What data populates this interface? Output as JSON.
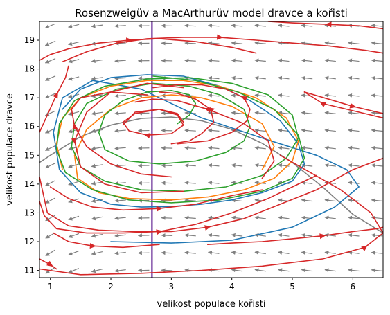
{
  "chart_data": {
    "type": "line",
    "title": "Rosenzweigův a MacArthurův model dravce a kořisti",
    "xlabel": "velikost populace kořisti",
    "ylabel": "velikost populace dravce",
    "xlim": [
      0.82,
      6.5
    ],
    "ylim": [
      10.75,
      19.65
    ],
    "x_ticks": [
      1,
      2,
      3,
      4,
      5,
      6
    ],
    "y_ticks": [
      11,
      12,
      13,
      14,
      15,
      16,
      17,
      18,
      19
    ],
    "grid": false,
    "legend": "none",
    "vector_field": {
      "color": "#808080",
      "x_from": 1.0,
      "x_to": 6.4,
      "x_count": 15,
      "y_from": 11.0,
      "y_to": 19.5,
      "y_count": 15
    },
    "isoclines": [
      {
        "role": "prey-nullcline",
        "color": "#808080",
        "x": [
          0.82,
          1.0,
          1.5,
          2.0,
          2.5,
          3.0,
          3.5,
          4.0,
          4.5,
          5.0,
          5.5,
          6.0,
          6.5
        ],
        "y": [
          14.75,
          15.0,
          15.65,
          16.05,
          16.28,
          16.33,
          16.2,
          15.9,
          15.42,
          14.75,
          13.9,
          12.95,
          12.3
        ]
      },
      {
        "role": "predator-nullcline",
        "color": "#4b0082",
        "x": [
          2.68,
          2.68
        ],
        "y": [
          10.75,
          19.65
        ]
      }
    ],
    "series": [
      {
        "color": "#1f77b4",
        "x": [
          2.0,
          3.0,
          4.0,
          5.0,
          5.7,
          6.1,
          5.9,
          5.4,
          4.5,
          3.5,
          2.5,
          1.7,
          1.2,
          1.05,
          1.15,
          1.5,
          2.0,
          2.5,
          3.0,
          3.5,
          4.0,
          4.5,
          5.0,
          5.2,
          5.1,
          4.8,
          4.3,
          3.8,
          3.2,
          2.6,
          2.0,
          1.5,
          1.2
        ],
        "y": [
          12.0,
          11.95,
          12.05,
          12.5,
          13.2,
          13.9,
          14.5,
          15.0,
          15.6,
          16.3,
          17.3,
          17.6,
          17.0,
          15.8,
          14.5,
          13.7,
          13.3,
          13.2,
          13.22,
          13.3,
          13.45,
          13.7,
          14.1,
          14.7,
          15.4,
          16.2,
          16.9,
          17.4,
          17.75,
          17.8,
          17.7,
          17.3,
          16.6
        ]
      },
      {
        "color": "#ff7f0e",
        "x": [
          4.5,
          4.7,
          4.5,
          4.0,
          3.5,
          3.0,
          2.5,
          2.0,
          1.6,
          1.4,
          1.45,
          1.8,
          2.3,
          3.0,
          3.6,
          4.2,
          4.7,
          5.0,
          5.1,
          4.9,
          4.4,
          3.8,
          3.2,
          2.6,
          2.0,
          1.5,
          1.2,
          1.1,
          1.2
        ],
        "y": [
          14.5,
          15.3,
          16.1,
          16.7,
          17.0,
          17.1,
          17.0,
          16.6,
          15.9,
          15.0,
          14.2,
          13.7,
          13.5,
          13.45,
          13.55,
          13.8,
          14.2,
          14.8,
          15.5,
          16.3,
          17.0,
          17.4,
          17.6,
          17.6,
          17.4,
          17.0,
          16.3,
          15.4,
          14.5
        ]
      },
      {
        "color": "#2ca02c",
        "x": [
          3.1,
          3.3,
          3.4,
          3.3,
          3.0,
          2.6,
          2.2,
          1.9,
          1.8,
          1.9,
          2.3,
          2.8,
          3.4,
          3.9,
          4.2,
          4.3,
          4.2,
          3.8,
          3.3,
          2.7,
          2.1,
          1.6,
          1.4,
          1.35,
          1.5,
          1.9,
          2.5,
          3.2,
          3.9,
          4.5,
          4.9,
          5.1,
          5.0,
          4.6,
          4.0,
          3.3,
          2.6,
          1.9,
          1.4,
          1.15,
          1.1,
          1.25,
          1.7,
          2.3,
          3.0,
          3.8,
          4.5,
          5.0,
          5.2,
          5.1,
          4.7,
          4.1,
          3.4,
          2.7
        ],
        "y": [
          16.1,
          16.4,
          16.8,
          17.1,
          17.25,
          17.2,
          16.9,
          16.4,
          15.8,
          15.2,
          14.8,
          14.7,
          14.8,
          15.1,
          15.5,
          16.0,
          16.6,
          17.1,
          17.4,
          17.5,
          17.3,
          16.8,
          16.1,
          15.3,
          14.6,
          14.1,
          13.8,
          13.75,
          13.9,
          14.3,
          14.9,
          15.6,
          16.4,
          17.1,
          17.5,
          17.7,
          17.65,
          17.4,
          16.9,
          16.1,
          15.2,
          14.4,
          13.8,
          13.45,
          13.35,
          13.45,
          13.75,
          14.2,
          14.9,
          15.7,
          16.6,
          17.2,
          17.6,
          17.75
        ]
      },
      {
        "color": "#d62728",
        "x": [
          2.2,
          2.4,
          2.8,
          3.1,
          3.2,
          3.0,
          2.6,
          2.3,
          2.2,
          2.4,
          2.8,
          3.1,
          3.2
        ],
        "y": [
          16.05,
          16.5,
          16.6,
          16.4,
          16.05,
          15.75,
          15.7,
          15.85,
          16.15,
          16.45,
          16.6,
          16.45,
          16.15
        ]
      },
      {
        "color": "#d62728",
        "x": [
          3.0,
          3.3,
          3.5,
          3.7,
          3.65,
          3.4,
          3.1,
          2.8
        ],
        "y": [
          15.4,
          15.5,
          15.75,
          16.15,
          16.6,
          16.95,
          17.15,
          17.2
        ]
      },
      {
        "color": "#d62728",
        "x": [
          3.2,
          2.6,
          2.0,
          1.6,
          1.4,
          1.5,
          1.9,
          2.5,
          3.2
        ],
        "y": [
          17.35,
          17.5,
          17.2,
          16.5,
          15.5,
          14.6,
          14.0,
          13.7,
          13.75
        ]
      },
      {
        "color": "#d62728",
        "x": [
          3.0,
          2.5,
          2.0,
          1.6,
          1.4,
          1.35,
          1.5,
          2.0,
          2.6
        ],
        "y": [
          14.25,
          14.35,
          14.7,
          15.3,
          16.0,
          16.6,
          17.0,
          17.2,
          17.1
        ]
      },
      {
        "color": "#d62728",
        "x": [
          4.5,
          4.7,
          4.6,
          4.2,
          3.6,
          3.1,
          2.7,
          2.4
        ],
        "y": [
          14.2,
          14.8,
          15.5,
          16.1,
          16.6,
          16.9,
          16.95,
          16.85
        ]
      },
      {
        "color": "#d62728",
        "x": [
          3.1,
          3.6,
          4.0,
          4.25,
          4.3,
          4.2,
          3.9,
          3.5,
          3.1,
          2.7
        ],
        "y": [
          15.4,
          15.5,
          15.8,
          16.2,
          16.6,
          17.0,
          17.3,
          17.45,
          17.45,
          17.35
        ]
      },
      {
        "color": "#d62728",
        "x": [
          0.82,
          1.0,
          1.3,
          1.8,
          2.3,
          2.8,
          3.4,
          4.0,
          4.4
        ],
        "y": [
          18.3,
          18.5,
          18.7,
          18.9,
          19.0,
          19.05,
          18.95,
          18.75,
          18.55
        ]
      },
      {
        "color": "#d62728",
        "x": [
          1.2,
          1.6,
          2.1,
          2.6,
          3.2,
          3.8,
          4.4,
          5.0,
          5.6,
          6.2,
          6.5
        ],
        "y": [
          18.25,
          18.6,
          18.9,
          19.05,
          19.1,
          19.1,
          19.0,
          18.9,
          18.8,
          18.65,
          18.55
        ]
      },
      {
        "color": "#d62728",
        "x": [
          6.5,
          6.1,
          5.6,
          5.0,
          4.6
        ],
        "y": [
          19.4,
          19.5,
          19.55,
          19.6,
          19.65
        ]
      },
      {
        "color": "#d62728",
        "x": [
          6.5,
          6.0,
          5.5,
          5.2
        ],
        "y": [
          16.3,
          16.55,
          16.8,
          17.2
        ]
      },
      {
        "color": "#d62728",
        "x": [
          0.82,
          0.95,
          1.1,
          1.25,
          1.3
        ],
        "y": [
          15.8,
          16.4,
          17.1,
          17.7,
          18.1
        ]
      },
      {
        "color": "#d62728",
        "x": [
          0.82,
          0.95,
          1.3,
          1.8,
          2.4,
          3.0,
          3.6,
          4.2,
          4.8,
          5.4,
          6.0,
          6.5
        ],
        "y": [
          14.25,
          13.0,
          12.55,
          12.4,
          12.35,
          12.35,
          12.5,
          12.8,
          13.3,
          13.8,
          14.5,
          14.9
        ]
      },
      {
        "color": "#d62728",
        "x": [
          1.0,
          1.3,
          1.7,
          2.2,
          2.8,
          3.4,
          4.0,
          4.5
        ],
        "y": [
          13.9,
          13.5,
          13.2,
          13.1,
          13.15,
          13.3,
          13.6,
          13.8
        ]
      },
      {
        "color": "#d62728",
        "x": [
          0.82,
          0.9,
          1.1,
          1.6,
          2.2,
          2.8,
          3.4,
          4.0,
          4.6,
          5.1,
          5.4
        ],
        "y": [
          13.4,
          12.9,
          12.45,
          12.3,
          12.3,
          12.35,
          12.6,
          13.0,
          13.5,
          14.0,
          14.3
        ]
      },
      {
        "color": "#d62728",
        "x": [
          1.05,
          1.3,
          1.7,
          2.2,
          2.8
        ],
        "y": [
          12.3,
          12.0,
          11.85,
          11.8,
          11.9
        ]
      },
      {
        "color": "#d62728",
        "x": [
          3.6,
          4.0,
          4.5,
          5.0,
          5.5,
          6.0,
          6.4,
          6.5
        ],
        "y": [
          11.9,
          11.95,
          12.0,
          12.1,
          12.2,
          12.35,
          12.45,
          12.5
        ]
      },
      {
        "color": "#d62728",
        "x": [
          0.82,
          1.5,
          2.5,
          3.5,
          4.5,
          5.5,
          6.2,
          6.5,
          6.3,
          5.8,
          5.3,
          4.8
        ],
        "y": [
          11.05,
          10.85,
          10.9,
          11.0,
          11.15,
          11.4,
          11.8,
          12.3,
          13.0,
          13.8,
          14.4,
          15.0
        ]
      },
      {
        "color": "#d62728",
        "x": [
          0.82,
          1.0,
          1.1
        ],
        "y": [
          11.4,
          11.2,
          11.05
        ]
      },
      {
        "color": "#d62728",
        "x": [
          5.2,
          5.6,
          6.0,
          6.5
        ],
        "y": [
          17.2,
          16.95,
          16.7,
          16.45
        ]
      }
    ]
  }
}
